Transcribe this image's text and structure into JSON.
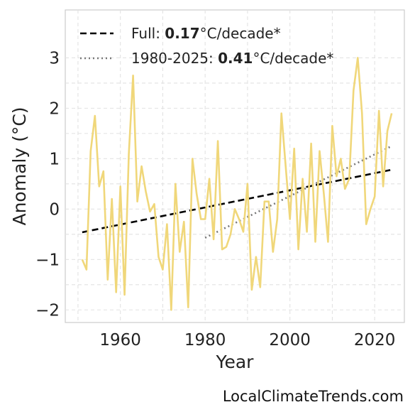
{
  "chart_data": {
    "type": "line",
    "xlabel": "Year",
    "ylabel": "Anomaly (°C)",
    "xlim": [
      1947,
      2027
    ],
    "ylim": [
      -2.25,
      3.95
    ],
    "xticks": [
      1960,
      1980,
      2000,
      2020
    ],
    "xtick_labels": [
      "1960",
      "1980",
      "2000",
      "2020"
    ],
    "yticks": [
      -2,
      -1,
      0,
      1,
      2,
      3
    ],
    "ytick_labels": [
      "−2",
      "−1",
      "0",
      "1",
      "2",
      "3"
    ],
    "grid": true,
    "legend_position": "top-left",
    "series": [
      {
        "color": "#f0d77a",
        "x": [
          1951,
          1952,
          1953,
          1954,
          1955,
          1956,
          1957,
          1958,
          1959,
          1960,
          1961,
          1962,
          1963,
          1964,
          1965,
          1966,
          1967,
          1968,
          1969,
          1970,
          1971,
          1972,
          1973,
          1974,
          1975,
          1976,
          1977,
          1978,
          1979,
          1980,
          1981,
          1982,
          1983,
          1984,
          1985,
          1986,
          1987,
          1988,
          1989,
          1990,
          1991,
          1992,
          1993,
          1994,
          1995,
          1996,
          1997,
          1998,
          1999,
          2000,
          2001,
          2002,
          2003,
          2004,
          2005,
          2006,
          2007,
          2008,
          2009,
          2010,
          2011,
          2012,
          2013,
          2014,
          2015,
          2016,
          2017,
          2018,
          2019,
          2020,
          2021,
          2022,
          2023,
          2024
        ],
        "y": [
          -1.0,
          -1.2,
          1.15,
          1.85,
          0.45,
          0.75,
          -1.4,
          0.2,
          -1.65,
          0.45,
          -1.7,
          1.1,
          2.65,
          0.15,
          0.85,
          0.35,
          -0.05,
          0.1,
          -0.95,
          -1.2,
          -0.3,
          -2.0,
          0.5,
          -0.85,
          -0.25,
          -1.95,
          1.0,
          0.3,
          -0.2,
          -0.2,
          0.6,
          -0.6,
          1.35,
          -0.8,
          -0.75,
          -0.5,
          0.0,
          -0.2,
          -0.45,
          0.5,
          -1.6,
          -0.95,
          -1.55,
          0.15,
          0.15,
          -0.85,
          -0.2,
          1.9,
          0.85,
          -0.2,
          1.2,
          -0.8,
          0.6,
          -0.45,
          1.3,
          -0.65,
          1.15,
          0.3,
          -0.65,
          1.65,
          0.65,
          1.0,
          0.4,
          0.6,
          2.35,
          3.0,
          1.9,
          -0.3,
          0.0,
          0.25,
          1.95,
          0.45,
          1.55,
          1.9
        ]
      }
    ],
    "trends": [
      {
        "style": "dashed",
        "color": "#000000",
        "x": [
          1951,
          2024
        ],
        "y": [
          -0.46,
          0.78
        ]
      },
      {
        "style": "dotted",
        "color": "#777777",
        "x": [
          1980,
          2024
        ],
        "y": [
          -0.57,
          1.25
        ]
      }
    ],
    "legend": [
      {
        "prefix": "Full: ",
        "value": "0.17",
        "suffix": "°C/decade*"
      },
      {
        "prefix": "1980-2025: ",
        "value": "0.41",
        "suffix": "°C/decade*"
      }
    ]
  },
  "watermark": "LocalClimateTrends.com"
}
